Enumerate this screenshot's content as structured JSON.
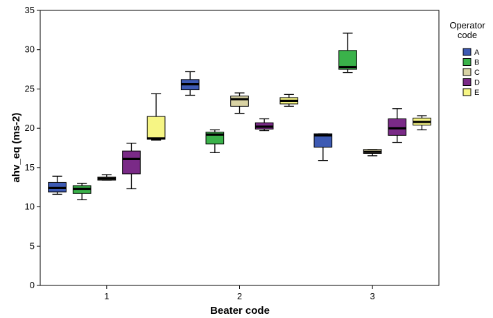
{
  "chart_data": {
    "type": "boxplot",
    "xlabel": "Beater code",
    "ylabel": "ahv_eq (ms-2)",
    "ylim": [
      0,
      35
    ],
    "yticks": [
      0,
      5,
      10,
      15,
      20,
      25,
      30,
      35
    ],
    "categories": [
      "1",
      "2",
      "3"
    ],
    "grid": false,
    "legend": {
      "title": [
        "Operator",
        "code"
      ],
      "placement": "right",
      "entries": [
        {
          "name": "A",
          "color": "#3d5ab3"
        },
        {
          "name": "B",
          "color": "#3ab24a"
        },
        {
          "name": "C",
          "color": "#d9d3a4"
        },
        {
          "name": "D",
          "color": "#7a2a87"
        },
        {
          "name": "E",
          "color": "#f6f584"
        }
      ]
    },
    "boxes": [
      {
        "category": "1",
        "operator": "A",
        "min": 11.6,
        "q1": 11.9,
        "median": 12.4,
        "q3": 13.1,
        "max": 13.9
      },
      {
        "category": "1",
        "operator": "B",
        "min": 10.9,
        "q1": 11.7,
        "median": 12.3,
        "q3": 12.7,
        "max": 13.0
      },
      {
        "category": "1",
        "operator": "C",
        "min": 13.4,
        "q1": 13.4,
        "median": 13.6,
        "q3": 13.8,
        "max": 14.1
      },
      {
        "category": "1",
        "operator": "D",
        "min": 12.3,
        "q1": 14.2,
        "median": 16.1,
        "q3": 17.1,
        "max": 18.1
      },
      {
        "category": "1",
        "operator": "E",
        "min": 18.5,
        "q1": 18.6,
        "median": 18.7,
        "q3": 21.5,
        "max": 24.4
      },
      {
        "category": "2",
        "operator": "A",
        "min": 24.2,
        "q1": 24.9,
        "median": 25.6,
        "q3": 26.2,
        "max": 27.2
      },
      {
        "category": "2",
        "operator": "B",
        "min": 16.9,
        "q1": 18.0,
        "median": 19.2,
        "q3": 19.5,
        "max": 19.8
      },
      {
        "category": "2",
        "operator": "C",
        "min": 21.9,
        "q1": 22.8,
        "median": 23.7,
        "q3": 24.1,
        "max": 24.5
      },
      {
        "category": "2",
        "operator": "D",
        "min": 19.7,
        "q1": 19.9,
        "median": 20.2,
        "q3": 20.7,
        "max": 21.2
      },
      {
        "category": "2",
        "operator": "E",
        "min": 22.8,
        "q1": 23.1,
        "median": 23.5,
        "q3": 23.9,
        "max": 24.3
      },
      {
        "category": "3",
        "operator": "A",
        "min": 15.9,
        "q1": 17.6,
        "median": 19.1,
        "q3": 19.3,
        "max": 19.3
      },
      {
        "category": "3",
        "operator": "B",
        "min": 27.1,
        "q1": 27.5,
        "median": 27.8,
        "q3": 29.9,
        "max": 32.1
      },
      {
        "category": "3",
        "operator": "C",
        "min": 16.5,
        "q1": 16.8,
        "median": 17.0,
        "q3": 17.3,
        "max": 17.3
      },
      {
        "category": "3",
        "operator": "D",
        "min": 18.2,
        "q1": 19.1,
        "median": 20.0,
        "q3": 21.2,
        "max": 22.5
      },
      {
        "category": "3",
        "operator": "E",
        "min": 19.8,
        "q1": 20.4,
        "median": 20.8,
        "q3": 21.3,
        "max": 21.6
      }
    ]
  }
}
